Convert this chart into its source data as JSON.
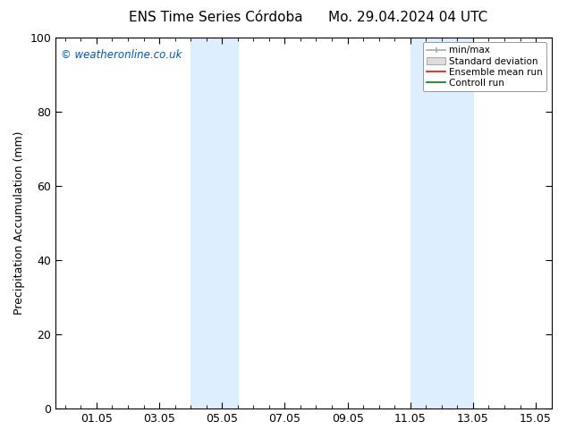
{
  "title_left": "ENS Time Series Córdoba",
  "title_right": "Mo. 29.04.2024 04 UTC",
  "ylabel": "Precipitation Accumulation (mm)",
  "ylim": [
    0,
    100
  ],
  "yticks": [
    0,
    20,
    40,
    60,
    80,
    100
  ],
  "xlim_min": -0.3,
  "xlim_max": 15.5,
  "xtick_labels": [
    "01.05",
    "03.05",
    "05.05",
    "07.05",
    "09.05",
    "11.05",
    "13.05",
    "15.05"
  ],
  "xtick_positions": [
    1.0,
    3.0,
    5.0,
    7.0,
    9.0,
    11.0,
    13.0,
    15.0
  ],
  "minor_xtick_positions": [
    0.0,
    0.5,
    1.0,
    1.5,
    2.0,
    2.5,
    3.0,
    3.5,
    4.0,
    4.5,
    5.0,
    5.5,
    6.0,
    6.5,
    7.0,
    7.5,
    8.0,
    8.5,
    9.0,
    9.5,
    10.0,
    10.5,
    11.0,
    11.5,
    12.0,
    12.5,
    13.0,
    13.5,
    14.0,
    14.5,
    15.0
  ],
  "shaded_regions": [
    {
      "xmin": 4.0,
      "xmax": 5.5,
      "color": "#ddeeff"
    },
    {
      "xmin": 11.0,
      "xmax": 13.0,
      "color": "#ddeeff"
    }
  ],
  "watermark_text": "© weatheronline.co.uk",
  "watermark_color": "#0055bb",
  "legend_items": [
    {
      "label": "min/max",
      "color": "#aaaaaa",
      "type": "line_with_caps"
    },
    {
      "label": "Standard deviation",
      "color": "#cccccc",
      "type": "rect"
    },
    {
      "label": "Ensemble mean run",
      "color": "#ff0000",
      "type": "line"
    },
    {
      "label": "Controll run",
      "color": "#008000",
      "type": "line"
    }
  ],
  "background_color": "#ffffff",
  "font_size": 9,
  "title_font_size": 11,
  "ylabel_font_size": 9
}
